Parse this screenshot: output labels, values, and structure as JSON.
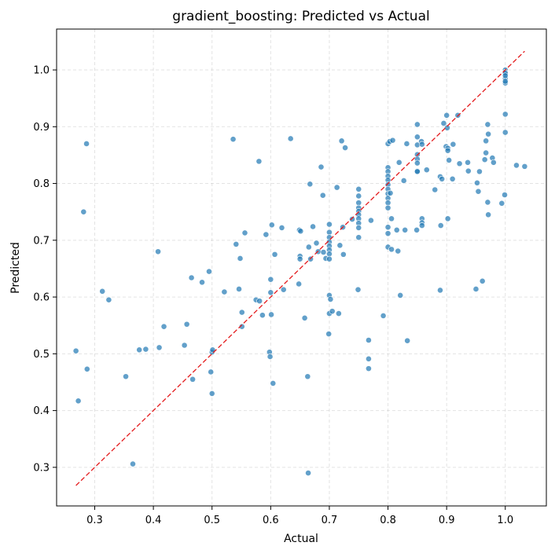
{
  "chart_data": {
    "type": "scatter",
    "title": "gradient_boosting: Predicted vs Actual",
    "xlabel": "Actual",
    "ylabel": "Predicted",
    "xlim": [
      0.235,
      1.07
    ],
    "ylim": [
      0.232,
      1.072
    ],
    "x_ticks": [
      0.3,
      0.4,
      0.5,
      0.6,
      0.7,
      0.8,
      0.9,
      1.0
    ],
    "x_tick_labels": [
      "0.3",
      "0.4",
      "0.5",
      "0.6",
      "0.7",
      "0.8",
      "0.9",
      "1.0"
    ],
    "y_ticks": [
      0.3,
      0.4,
      0.5,
      0.6,
      0.7,
      0.8,
      0.9,
      1.0
    ],
    "y_tick_labels": [
      "0.3",
      "0.4",
      "0.5",
      "0.6",
      "0.7",
      "0.8",
      "0.9",
      "1.0"
    ],
    "grid": true,
    "reference_line": {
      "x": [
        0.268,
        1.033
      ],
      "y": [
        0.268,
        1.033
      ],
      "color": "#e41a1c",
      "style": "dashed"
    },
    "series": [
      {
        "color": "#1f77b4",
        "points": [
          [
            0.268,
            0.505
          ],
          [
            0.272,
            0.417
          ],
          [
            0.281,
            0.75
          ],
          [
            0.286,
            0.87
          ],
          [
            0.287,
            0.473
          ],
          [
            0.313,
            0.61
          ],
          [
            0.324,
            0.595
          ],
          [
            0.353,
            0.46
          ],
          [
            0.365,
            0.306
          ],
          [
            0.376,
            0.507
          ],
          [
            0.387,
            0.508
          ],
          [
            0.408,
            0.68
          ],
          [
            0.41,
            0.511
          ],
          [
            0.418,
            0.548
          ],
          [
            0.453,
            0.515
          ],
          [
            0.457,
            0.552
          ],
          [
            0.465,
            0.634
          ],
          [
            0.467,
            0.455
          ],
          [
            0.483,
            0.626
          ],
          [
            0.495,
            0.645
          ],
          [
            0.498,
            0.468
          ],
          [
            0.5,
            0.43
          ],
          [
            0.5,
            0.503
          ],
          [
            0.501,
            0.507
          ],
          [
            0.521,
            0.609
          ],
          [
            0.536,
            0.878
          ],
          [
            0.541,
            0.693
          ],
          [
            0.546,
            0.614
          ],
          [
            0.548,
            0.668
          ],
          [
            0.551,
            0.573
          ],
          [
            0.551,
            0.548
          ],
          [
            0.556,
            0.713
          ],
          [
            0.575,
            0.595
          ],
          [
            0.58,
            0.839
          ],
          [
            0.581,
            0.593
          ],
          [
            0.586,
            0.568
          ],
          [
            0.592,
            0.71
          ],
          [
            0.598,
            0.503
          ],
          [
            0.599,
            0.495
          ],
          [
            0.6,
            0.631
          ],
          [
            0.6,
            0.608
          ],
          [
            0.601,
            0.569
          ],
          [
            0.602,
            0.727
          ],
          [
            0.604,
            0.448
          ],
          [
            0.607,
            0.675
          ],
          [
            0.619,
            0.722
          ],
          [
            0.622,
            0.613
          ],
          [
            0.634,
            0.879
          ],
          [
            0.648,
            0.623
          ],
          [
            0.649,
            0.718
          ],
          [
            0.65,
            0.672
          ],
          [
            0.65,
            0.667
          ],
          [
            0.651,
            0.716
          ],
          [
            0.658,
            0.563
          ],
          [
            0.663,
            0.46
          ],
          [
            0.664,
            0.29
          ],
          [
            0.665,
            0.688
          ],
          [
            0.667,
            0.799
          ],
          [
            0.668,
            0.667
          ],
          [
            0.672,
            0.724
          ],
          [
            0.678,
            0.695
          ],
          [
            0.681,
            0.68
          ],
          [
            0.686,
            0.829
          ],
          [
            0.689,
            0.779
          ],
          [
            0.69,
            0.679
          ],
          [
            0.694,
            0.668
          ],
          [
            0.699,
            0.535
          ],
          [
            0.7,
            0.603
          ],
          [
            0.7,
            0.728
          ],
          [
            0.7,
            0.714
          ],
          [
            0.7,
            0.705
          ],
          [
            0.7,
            0.697
          ],
          [
            0.7,
            0.69
          ],
          [
            0.7,
            0.683
          ],
          [
            0.7,
            0.676
          ],
          [
            0.7,
            0.667
          ],
          [
            0.7,
            0.571
          ],
          [
            0.702,
            0.596
          ],
          [
            0.705,
            0.575
          ],
          [
            0.713,
            0.793
          ],
          [
            0.716,
            0.571
          ],
          [
            0.718,
            0.691
          ],
          [
            0.721,
            0.875
          ],
          [
            0.723,
            0.723
          ],
          [
            0.724,
            0.675
          ],
          [
            0.727,
            0.863
          ],
          [
            0.739,
            0.737
          ],
          [
            0.749,
            0.613
          ],
          [
            0.75,
            0.79
          ],
          [
            0.75,
            0.778
          ],
          [
            0.75,
            0.766
          ],
          [
            0.75,
            0.757
          ],
          [
            0.75,
            0.751
          ],
          [
            0.75,
            0.745
          ],
          [
            0.75,
            0.738
          ],
          [
            0.75,
            0.73
          ],
          [
            0.75,
            0.722
          ],
          [
            0.75,
            0.705
          ],
          [
            0.767,
            0.524
          ],
          [
            0.767,
            0.491
          ],
          [
            0.767,
            0.474
          ],
          [
            0.771,
            0.735
          ],
          [
            0.792,
            0.567
          ],
          [
            0.8,
            0.87
          ],
          [
            0.8,
            0.828
          ],
          [
            0.8,
            0.821
          ],
          [
            0.8,
            0.813
          ],
          [
            0.8,
            0.806
          ],
          [
            0.8,
            0.798
          ],
          [
            0.8,
            0.79
          ],
          [
            0.8,
            0.782
          ],
          [
            0.8,
            0.774
          ],
          [
            0.8,
            0.766
          ],
          [
            0.8,
            0.757
          ],
          [
            0.8,
            0.723
          ],
          [
            0.8,
            0.712
          ],
          [
            0.8,
            0.688
          ],
          [
            0.803,
            0.874
          ],
          [
            0.804,
            0.783
          ],
          [
            0.806,
            0.684
          ],
          [
            0.806,
            0.738
          ],
          [
            0.808,
            0.876
          ],
          [
            0.815,
            0.718
          ],
          [
            0.817,
            0.681
          ],
          [
            0.819,
            0.837
          ],
          [
            0.821,
            0.603
          ],
          [
            0.827,
            0.805
          ],
          [
            0.829,
            0.718
          ],
          [
            0.832,
            0.87
          ],
          [
            0.833,
            0.523
          ],
          [
            0.849,
            0.718
          ],
          [
            0.85,
            0.904
          ],
          [
            0.85,
            0.882
          ],
          [
            0.85,
            0.868
          ],
          [
            0.85,
            0.851
          ],
          [
            0.85,
            0.843
          ],
          [
            0.85,
            0.836
          ],
          [
            0.85,
            0.822
          ],
          [
            0.85,
            0.821
          ],
          [
            0.857,
            0.874
          ],
          [
            0.858,
            0.738
          ],
          [
            0.858,
            0.731
          ],
          [
            0.858,
            0.726
          ],
          [
            0.858,
            0.869
          ],
          [
            0.866,
            0.824
          ],
          [
            0.88,
            0.789
          ],
          [
            0.889,
            0.812
          ],
          [
            0.889,
            0.612
          ],
          [
            0.89,
            0.726
          ],
          [
            0.892,
            0.808
          ],
          [
            0.895,
            0.906
          ],
          [
            0.899,
            0.865
          ],
          [
            0.9,
            0.92
          ],
          [
            0.901,
            0.898
          ],
          [
            0.902,
            0.862
          ],
          [
            0.902,
            0.858
          ],
          [
            0.902,
            0.738
          ],
          [
            0.904,
            0.841
          ],
          [
            0.91,
            0.808
          ],
          [
            0.911,
            0.869
          ],
          [
            0.919,
            0.92
          ],
          [
            0.922,
            0.835
          ],
          [
            0.936,
            0.837
          ],
          [
            0.937,
            0.822
          ],
          [
            0.95,
            0.614
          ],
          [
            0.952,
            0.801
          ],
          [
            0.954,
            0.786
          ],
          [
            0.956,
            0.821
          ],
          [
            0.961,
            0.628
          ],
          [
            0.965,
            0.842
          ],
          [
            0.967,
            0.875
          ],
          [
            0.967,
            0.854
          ],
          [
            0.97,
            0.904
          ],
          [
            0.97,
            0.767
          ],
          [
            0.971,
            0.887
          ],
          [
            0.971,
            0.745
          ],
          [
            0.978,
            0.845
          ],
          [
            0.98,
            0.837
          ],
          [
            0.994,
            0.765
          ],
          [
            0.999,
            0.78
          ],
          [
            1.0,
            1.0
          ],
          [
            1.0,
            0.996
          ],
          [
            1.0,
            0.985
          ],
          [
            1.0,
            0.977
          ],
          [
            1.0,
            0.922
          ],
          [
            1.0,
            0.89
          ],
          [
            1.0,
            0.994
          ],
          [
            1.0,
            0.99
          ],
          [
            1.0,
            0.98
          ],
          [
            1.019,
            0.832
          ],
          [
            1.033,
            0.83
          ]
        ]
      }
    ]
  }
}
